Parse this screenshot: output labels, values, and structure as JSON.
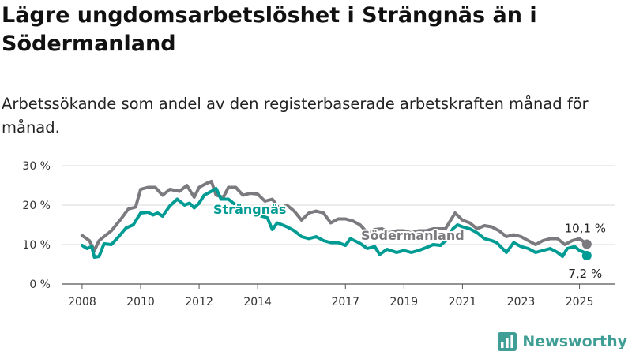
{
  "title": "Lägre ungdomsarbetslöshet i Strängnäs än i Södermanland",
  "subtitle": "Arbetssökande som andel av den registerbaserade arbetskraften månad för månad.",
  "brand": {
    "name": "Newsworthy",
    "icon": "bar-chart-logo-icon"
  },
  "colors": {
    "strangnas": "#009b93",
    "sodermanland": "#7a7a7f",
    "grid": "#d9d9d9",
    "axis": "#555555"
  },
  "chart_data": {
    "type": "line",
    "title": "Lägre ungdomsarbetslöshet i Strängnäs än i Södermanland",
    "subtitle": "Arbetssökande som andel av den registerbaserade arbetskraften månad för månad.",
    "xlabel": "",
    "ylabel": "",
    "x_ticks": [
      "2008",
      "2010",
      "2012",
      "2014",
      "2017",
      "2019",
      "2021",
      "2023",
      "2025"
    ],
    "x_tick_years": [
      2008,
      2010,
      2012,
      2014,
      2017,
      2019,
      2021,
      2023,
      2025
    ],
    "y_ticks": [
      "0 %",
      "10 %",
      "20 %",
      "30 %"
    ],
    "y_tick_values": [
      0,
      10,
      20,
      30
    ],
    "xlim": [
      2007.3,
      2026.2
    ],
    "ylim": [
      0,
      30
    ],
    "grid": true,
    "legend": "inline labels",
    "series": [
      {
        "name": "Strängnäs",
        "color": "#009b93",
        "end_label": "7,2 %",
        "points": [
          [
            2008.0,
            9.8
          ],
          [
            2008.17,
            9.0
          ],
          [
            2008.33,
            9.5
          ],
          [
            2008.42,
            6.8
          ],
          [
            2008.58,
            7.0
          ],
          [
            2008.75,
            10.2
          ],
          [
            2009.0,
            10.0
          ],
          [
            2009.25,
            12.0
          ],
          [
            2009.5,
            14.2
          ],
          [
            2009.75,
            15.0
          ],
          [
            2010.0,
            18.0
          ],
          [
            2010.25,
            18.2
          ],
          [
            2010.42,
            17.5
          ],
          [
            2010.58,
            18.0
          ],
          [
            2010.75,
            17.2
          ],
          [
            2011.0,
            19.8
          ],
          [
            2011.25,
            21.5
          ],
          [
            2011.5,
            20.0
          ],
          [
            2011.67,
            20.5
          ],
          [
            2011.83,
            19.3
          ],
          [
            2012.0,
            20.5
          ],
          [
            2012.17,
            22.5
          ],
          [
            2012.42,
            23.5
          ],
          [
            2012.58,
            24.2
          ],
          [
            2012.75,
            21.5
          ],
          [
            2013.0,
            21.5
          ],
          [
            2013.25,
            20.0
          ],
          [
            2013.5,
            19.0
          ],
          [
            2013.75,
            18.5
          ],
          [
            2014.0,
            17.5
          ],
          [
            2014.33,
            16.8
          ],
          [
            2014.5,
            13.8
          ],
          [
            2014.67,
            15.5
          ],
          [
            2015.0,
            14.5
          ],
          [
            2015.25,
            13.5
          ],
          [
            2015.5,
            12.0
          ],
          [
            2015.75,
            11.5
          ],
          [
            2016.0,
            12.0
          ],
          [
            2016.25,
            11.0
          ],
          [
            2016.5,
            10.5
          ],
          [
            2016.75,
            10.5
          ],
          [
            2017.0,
            9.8
          ],
          [
            2017.17,
            11.5
          ],
          [
            2017.5,
            10.3
          ],
          [
            2017.75,
            9.0
          ],
          [
            2018.0,
            9.5
          ],
          [
            2018.17,
            7.5
          ],
          [
            2018.42,
            8.8
          ],
          [
            2018.75,
            8.0
          ],
          [
            2019.0,
            8.5
          ],
          [
            2019.25,
            8.0
          ],
          [
            2019.5,
            8.5
          ],
          [
            2019.75,
            9.2
          ],
          [
            2020.0,
            10.0
          ],
          [
            2020.25,
            9.8
          ],
          [
            2020.5,
            11.5
          ],
          [
            2020.67,
            14.0
          ],
          [
            2020.83,
            15.0
          ],
          [
            2021.0,
            14.5
          ],
          [
            2021.25,
            14.0
          ],
          [
            2021.5,
            13.0
          ],
          [
            2021.75,
            11.5
          ],
          [
            2022.0,
            11.0
          ],
          [
            2022.17,
            10.5
          ],
          [
            2022.5,
            8.0
          ],
          [
            2022.75,
            10.5
          ],
          [
            2023.0,
            9.5
          ],
          [
            2023.25,
            9.0
          ],
          [
            2023.5,
            8.0
          ],
          [
            2023.75,
            8.5
          ],
          [
            2024.0,
            9.0
          ],
          [
            2024.25,
            8.0
          ],
          [
            2024.42,
            7.0
          ],
          [
            2024.58,
            9.0
          ],
          [
            2024.83,
            9.5
          ],
          [
            2025.0,
            8.5
          ],
          [
            2025.17,
            8.0
          ],
          [
            2025.25,
            7.2
          ]
        ]
      },
      {
        "name": "Södermanland",
        "color": "#7a7a7f",
        "end_label": "10,1 %",
        "points": [
          [
            2008.0,
            12.3
          ],
          [
            2008.25,
            11.0
          ],
          [
            2008.42,
            8.5
          ],
          [
            2008.58,
            11.0
          ],
          [
            2009.0,
            13.5
          ],
          [
            2009.33,
            16.5
          ],
          [
            2009.58,
            19.0
          ],
          [
            2009.83,
            19.5
          ],
          [
            2010.0,
            24.0
          ],
          [
            2010.25,
            24.5
          ],
          [
            2010.5,
            24.5
          ],
          [
            2010.75,
            22.5
          ],
          [
            2011.0,
            24.0
          ],
          [
            2011.33,
            23.5
          ],
          [
            2011.58,
            25.0
          ],
          [
            2011.83,
            22.0
          ],
          [
            2012.0,
            24.5
          ],
          [
            2012.25,
            25.5
          ],
          [
            2012.42,
            26.0
          ],
          [
            2012.58,
            22.5
          ],
          [
            2012.83,
            22.0
          ],
          [
            2013.0,
            24.5
          ],
          [
            2013.25,
            24.5
          ],
          [
            2013.5,
            22.5
          ],
          [
            2013.75,
            23.0
          ],
          [
            2014.0,
            22.8
          ],
          [
            2014.25,
            21.0
          ],
          [
            2014.5,
            21.5
          ],
          [
            2014.75,
            19.0
          ],
          [
            2015.0,
            20.0
          ],
          [
            2015.25,
            18.5
          ],
          [
            2015.5,
            16.2
          ],
          [
            2015.75,
            18.0
          ],
          [
            2016.0,
            18.5
          ],
          [
            2016.25,
            18.0
          ],
          [
            2016.5,
            15.5
          ],
          [
            2016.75,
            16.5
          ],
          [
            2017.0,
            16.5
          ],
          [
            2017.25,
            16.0
          ],
          [
            2017.5,
            15.0
          ],
          [
            2017.75,
            13.0
          ],
          [
            2018.0,
            13.8
          ],
          [
            2018.25,
            14.0
          ],
          [
            2018.5,
            13.0
          ],
          [
            2018.75,
            13.5
          ],
          [
            2019.0,
            13.5
          ],
          [
            2019.25,
            13.0
          ],
          [
            2019.5,
            13.5
          ],
          [
            2019.75,
            13.5
          ],
          [
            2020.0,
            14.0
          ],
          [
            2020.25,
            14.0
          ],
          [
            2020.42,
            14.0
          ],
          [
            2020.58,
            16.0
          ],
          [
            2020.75,
            18.0
          ],
          [
            2021.0,
            16.2
          ],
          [
            2021.25,
            15.5
          ],
          [
            2021.5,
            14.0
          ],
          [
            2021.75,
            14.8
          ],
          [
            2022.0,
            14.5
          ],
          [
            2022.25,
            13.5
          ],
          [
            2022.5,
            12.0
          ],
          [
            2022.75,
            12.5
          ],
          [
            2023.0,
            12.0
          ],
          [
            2023.25,
            11.0
          ],
          [
            2023.5,
            10.0
          ],
          [
            2023.75,
            11.0
          ],
          [
            2024.0,
            11.5
          ],
          [
            2024.25,
            11.5
          ],
          [
            2024.5,
            10.0
          ],
          [
            2024.75,
            11.0
          ],
          [
            2025.0,
            11.5
          ],
          [
            2025.25,
            10.1
          ]
        ]
      }
    ]
  }
}
